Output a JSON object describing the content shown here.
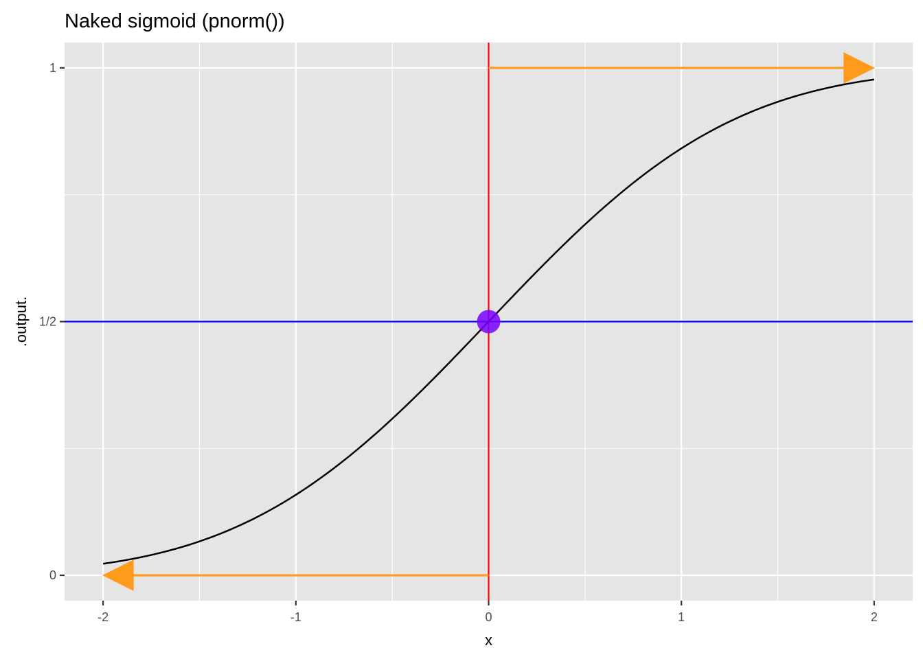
{
  "chart_data": {
    "type": "line",
    "title": "Naked sigmoid (pnorm())",
    "xlabel": "x",
    "ylabel": ".output.",
    "xlim": [
      -2.2,
      2.2
    ],
    "ylim": [
      -0.05,
      1.05
    ],
    "x_ticks": [
      {
        "value": -2,
        "label": "-2"
      },
      {
        "value": -1,
        "label": "-1"
      },
      {
        "value": 0,
        "label": "0"
      },
      {
        "value": 1,
        "label": "1"
      },
      {
        "value": 2,
        "label": "2"
      }
    ],
    "y_ticks": [
      {
        "value": 0,
        "label": "0"
      },
      {
        "value": 0.5,
        "label": "1/2"
      },
      {
        "value": 1,
        "label": "1"
      }
    ],
    "x_minor_gridlines": [
      -1.5,
      -0.5,
      0.5,
      1.5
    ],
    "y_minor_gridlines": [
      0.25,
      0.75
    ],
    "grid": true,
    "series": [
      {
        "function": "pnorm",
        "color": "#000000",
        "x": [
          -2.0,
          -1.8,
          -1.6,
          -1.4,
          -1.2,
          -1.0,
          -0.8,
          -0.6,
          -0.4,
          -0.2,
          0.0,
          0.2,
          0.4,
          0.6,
          0.8,
          1.0,
          1.2,
          1.4,
          1.6,
          1.8,
          2.0
        ],
        "y": [
          0.0228,
          0.0359,
          0.0548,
          0.0808,
          0.1151,
          0.1587,
          0.2119,
          0.2743,
          0.3446,
          0.4207,
          0.5,
          0.5793,
          0.6554,
          0.7257,
          0.7881,
          0.8413,
          0.8849,
          0.9192,
          0.9452,
          0.9641,
          0.9772
        ]
      }
    ],
    "reference_lines": [
      {
        "orientation": "vertical",
        "x": 0,
        "color": "#ff0000"
      },
      {
        "orientation": "horizontal",
        "y": 0.5,
        "color": "#0000ff"
      }
    ],
    "arrows": [
      {
        "from": [
          0,
          1
        ],
        "to": [
          2,
          1
        ],
        "color": "#ff9a1a"
      },
      {
        "from": [
          0,
          0
        ],
        "to": [
          -2,
          0
        ],
        "color": "#ff9a1a"
      }
    ],
    "points": [
      {
        "x": 0,
        "y": 0.5,
        "color": "#7a00ff"
      }
    ],
    "background_color": "#e5e5e5",
    "gridline_color": "#ffffff"
  }
}
